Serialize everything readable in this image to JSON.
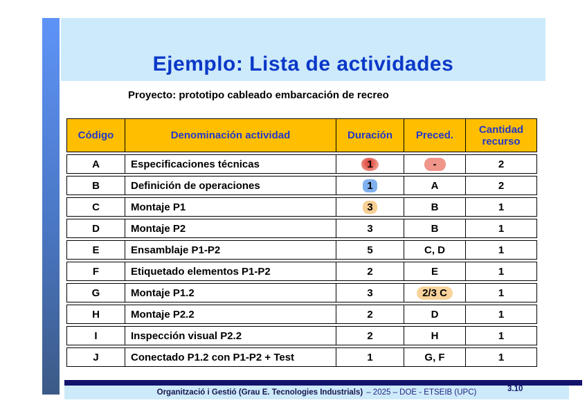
{
  "slide": {
    "title": "Ejemplo: Lista de actividades",
    "subtitle": "Proyecto: prototipo cableado embarcación de recreo"
  },
  "table": {
    "headers": [
      "Código",
      "Denominación actividad",
      "Duración",
      "Preced.",
      "Cantidad recurso"
    ],
    "rows": [
      {
        "codigo": "A",
        "denominacion": "Especificaciones técnicas",
        "duracion": "1",
        "preced": "-",
        "cantidad": "2",
        "duracion_hl": "red",
        "preced_hl": "red"
      },
      {
        "codigo": "B",
        "denominacion": "Definición de operaciones",
        "duracion": "1",
        "preced": "A",
        "cantidad": "2",
        "duracion_hl": "blue",
        "preced_hl": null
      },
      {
        "codigo": "C",
        "denominacion": "Montaje P1",
        "duracion": "3",
        "preced": "B",
        "cantidad": "1",
        "duracion_hl": "orange",
        "preced_hl": null
      },
      {
        "codigo": "D",
        "denominacion": "Montaje P2",
        "duracion": "3",
        "preced": "B",
        "cantidad": "1",
        "duracion_hl": null,
        "preced_hl": null
      },
      {
        "codigo": "E",
        "denominacion": "Ensamblaje P1-P2",
        "duracion": "5",
        "preced": "C, D",
        "cantidad": "1",
        "duracion_hl": null,
        "preced_hl": null
      },
      {
        "codigo": "F",
        "denominacion": "Etiquetado elementos P1-P2",
        "duracion": "2",
        "preced": "E",
        "cantidad": "1",
        "duracion_hl": null,
        "preced_hl": null
      },
      {
        "codigo": "G",
        "denominacion": "Montaje P1.2",
        "duracion": "3",
        "preced": "2/3 C",
        "cantidad": "1",
        "duracion_hl": null,
        "preced_hl": "orange"
      },
      {
        "codigo": "H",
        "denominacion": "Montaje P2.2",
        "duracion": "2",
        "preced": "D",
        "cantidad": "1",
        "duracion_hl": null,
        "preced_hl": null
      },
      {
        "codigo": "I",
        "denominacion": "Inspección visual P2.2",
        "duracion": "2",
        "preced": "H",
        "cantidad": "1",
        "duracion_hl": null,
        "preced_hl": null
      },
      {
        "codigo": "J",
        "denominacion": "Conectado P1.2 con P1-P2 + Test",
        "duracion": "1",
        "preced": "G, F",
        "cantidad": "1",
        "duracion_hl": null,
        "preced_hl": null
      }
    ]
  },
  "footer": {
    "course": "Organització i Gestió (Grau E. Tecnologies Industrials)",
    "suffix": "– 2025 – DOE - ETSEIB (UPC)",
    "page": "3.10"
  },
  "colors": {
    "title_text": "#0a38c8",
    "title_band": "#cdeafb",
    "header_bg": "#ffbf00",
    "header_text": "#2438c8",
    "left_bar_top": "#5e93f7",
    "left_bar_bottom": "#3c5a86",
    "footer_navy": "#13136b",
    "highlight_red": "#ef958a",
    "highlight_blue": "#7fb2ef",
    "highlight_orange": "#f8d49c"
  }
}
